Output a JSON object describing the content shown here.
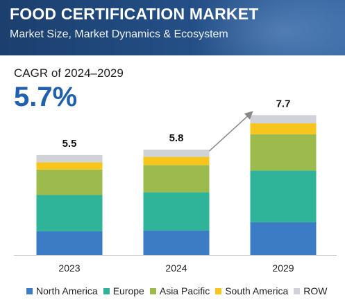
{
  "header": {
    "title": "FOOD CERTIFICATION MARKET",
    "subtitle": "Market Size, Market Dynamics & Ecosystem"
  },
  "cagr": {
    "label": "CAGR of 2024–2029",
    "value": "5.7%"
  },
  "colors": {
    "header_bg": "#1f4577",
    "cagr_text": "#1f5fb0",
    "arrow": "#888888"
  },
  "chart_data": {
    "type": "bar",
    "stacked": true,
    "categories": [
      "2023",
      "2024",
      "2029"
    ],
    "totals": [
      5.5,
      5.8,
      7.7
    ],
    "total_labels": [
      "5.5",
      "5.8",
      "7.7"
    ],
    "series": [
      {
        "name": "North America",
        "color": "#3c7cc4",
        "values": [
          1.3,
          1.35,
          1.8
        ]
      },
      {
        "name": "Europe",
        "color": "#2fb49a",
        "values": [
          2.0,
          2.1,
          2.85
        ]
      },
      {
        "name": "Asia Pacific",
        "color": "#9cbb4c",
        "values": [
          1.4,
          1.5,
          2.0
        ]
      },
      {
        "name": "South America",
        "color": "#f8c51c",
        "values": [
          0.4,
          0.45,
          0.6
        ]
      },
      {
        "name": "ROW",
        "color": "#cfd2d6",
        "values": [
          0.4,
          0.4,
          0.45
        ]
      }
    ],
    "annotations": [
      {
        "type": "arrow",
        "from": "2024",
        "to": "2029"
      }
    ],
    "xlabel": "",
    "ylabel": "",
    "grid": false,
    "legend": "bottom"
  }
}
